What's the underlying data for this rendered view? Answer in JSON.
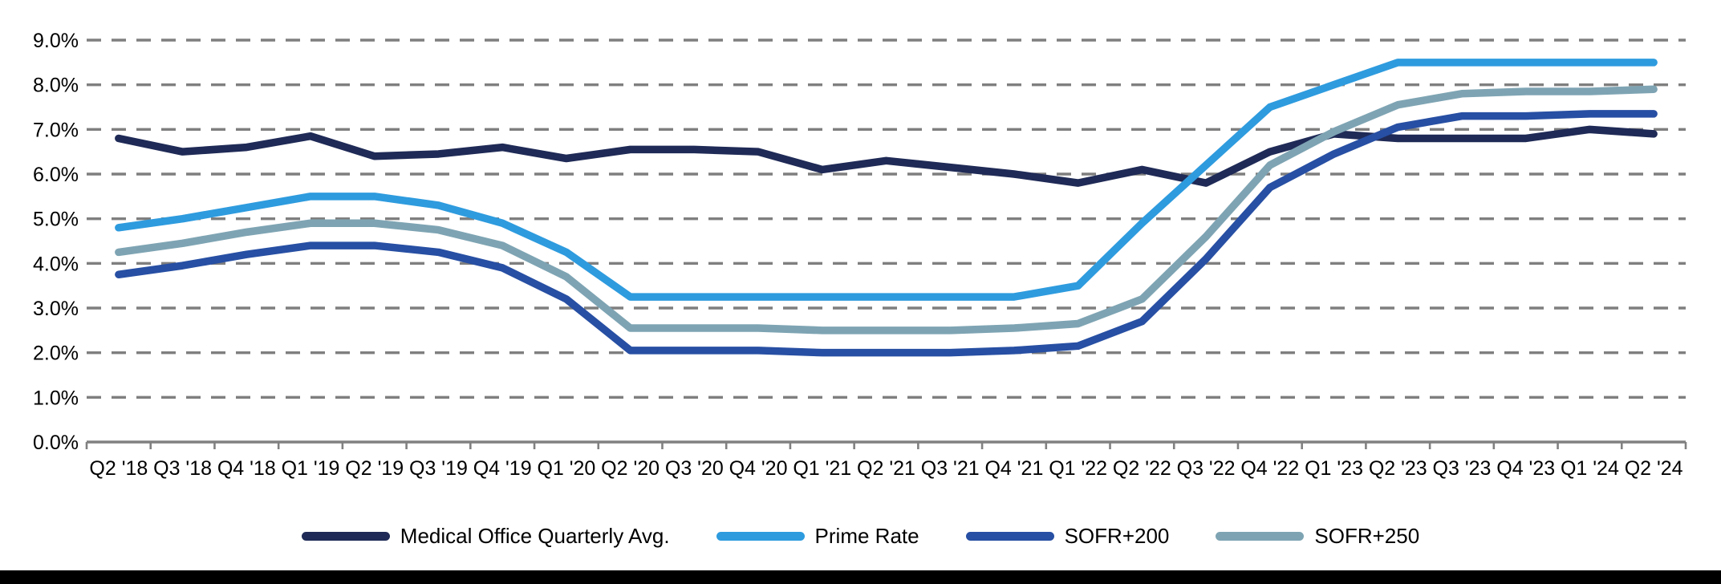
{
  "page": {
    "background": "#ffffff",
    "footer_bar_color": "#000000"
  },
  "chart_data": {
    "type": "line",
    "title": "",
    "xlabel": "",
    "ylabel": "",
    "categories": [
      "Q2 '18",
      "Q3 '18",
      "Q4 '18",
      "Q1 '19",
      "Q2 '19",
      "Q3 '19",
      "Q4 '19",
      "Q1 '20",
      "Q2 '20",
      "Q3 '20",
      "Q4 '20",
      "Q1 '21",
      "Q2 '21",
      "Q3 '21",
      "Q4 '21",
      "Q1 '22",
      "Q2 '22",
      "Q3 '22",
      "Q4 '22",
      "Q1 '23",
      "Q2 '23",
      "Q3 '23",
      "Q4 '23",
      "Q1 '24",
      "Q2 '24"
    ],
    "series": [
      {
        "name": "Medical Office Quarterly Avg.",
        "color": "#1F2A56",
        "values": [
          6.8,
          6.5,
          6.6,
          6.85,
          6.4,
          6.45,
          6.6,
          6.35,
          6.55,
          6.55,
          6.5,
          6.1,
          6.3,
          6.15,
          6.0,
          5.8,
          6.1,
          5.8,
          6.5,
          6.9,
          6.8,
          6.8,
          6.8,
          7.0,
          6.9
        ]
      },
      {
        "name": "Prime Rate",
        "color": "#2E9BDE",
        "values": [
          4.8,
          5.0,
          5.25,
          5.5,
          5.5,
          5.3,
          4.9,
          4.25,
          3.25,
          3.25,
          3.25,
          3.25,
          3.25,
          3.25,
          3.25,
          3.5,
          4.9,
          6.2,
          7.5,
          8.0,
          8.5,
          8.5,
          8.5,
          8.5,
          8.5
        ]
      },
      {
        "name": "SOFR+200",
        "color": "#274FA3",
        "values": [
          3.75,
          3.95,
          4.2,
          4.4,
          4.4,
          4.25,
          3.9,
          3.2,
          2.05,
          2.05,
          2.05,
          2.0,
          2.0,
          2.0,
          2.05,
          2.15,
          2.7,
          4.1,
          5.7,
          6.45,
          7.05,
          7.3,
          7.3,
          7.35,
          7.35
        ]
      },
      {
        "name": "SOFR+250",
        "color": "#7EA4B3",
        "values": [
          4.25,
          4.45,
          4.7,
          4.9,
          4.9,
          4.75,
          4.4,
          3.7,
          2.55,
          2.55,
          2.55,
          2.5,
          2.5,
          2.5,
          2.55,
          2.65,
          3.2,
          4.6,
          6.2,
          6.95,
          7.55,
          7.8,
          7.85,
          7.85,
          7.9
        ]
      }
    ],
    "y_axis": {
      "min": 0,
      "max": 9,
      "step": 1,
      "labels": [
        "0.0%",
        "1.0%",
        "2.0%",
        "3.0%",
        "4.0%",
        "5.0%",
        "6.0%",
        "7.0%",
        "8.0%",
        "9.0%"
      ]
    },
    "grid": {
      "show": true,
      "style": "dashed",
      "color": "#7F7F7F"
    },
    "axis_color": "#808080",
    "text_color": "#000000",
    "legend_position": "bottom"
  }
}
